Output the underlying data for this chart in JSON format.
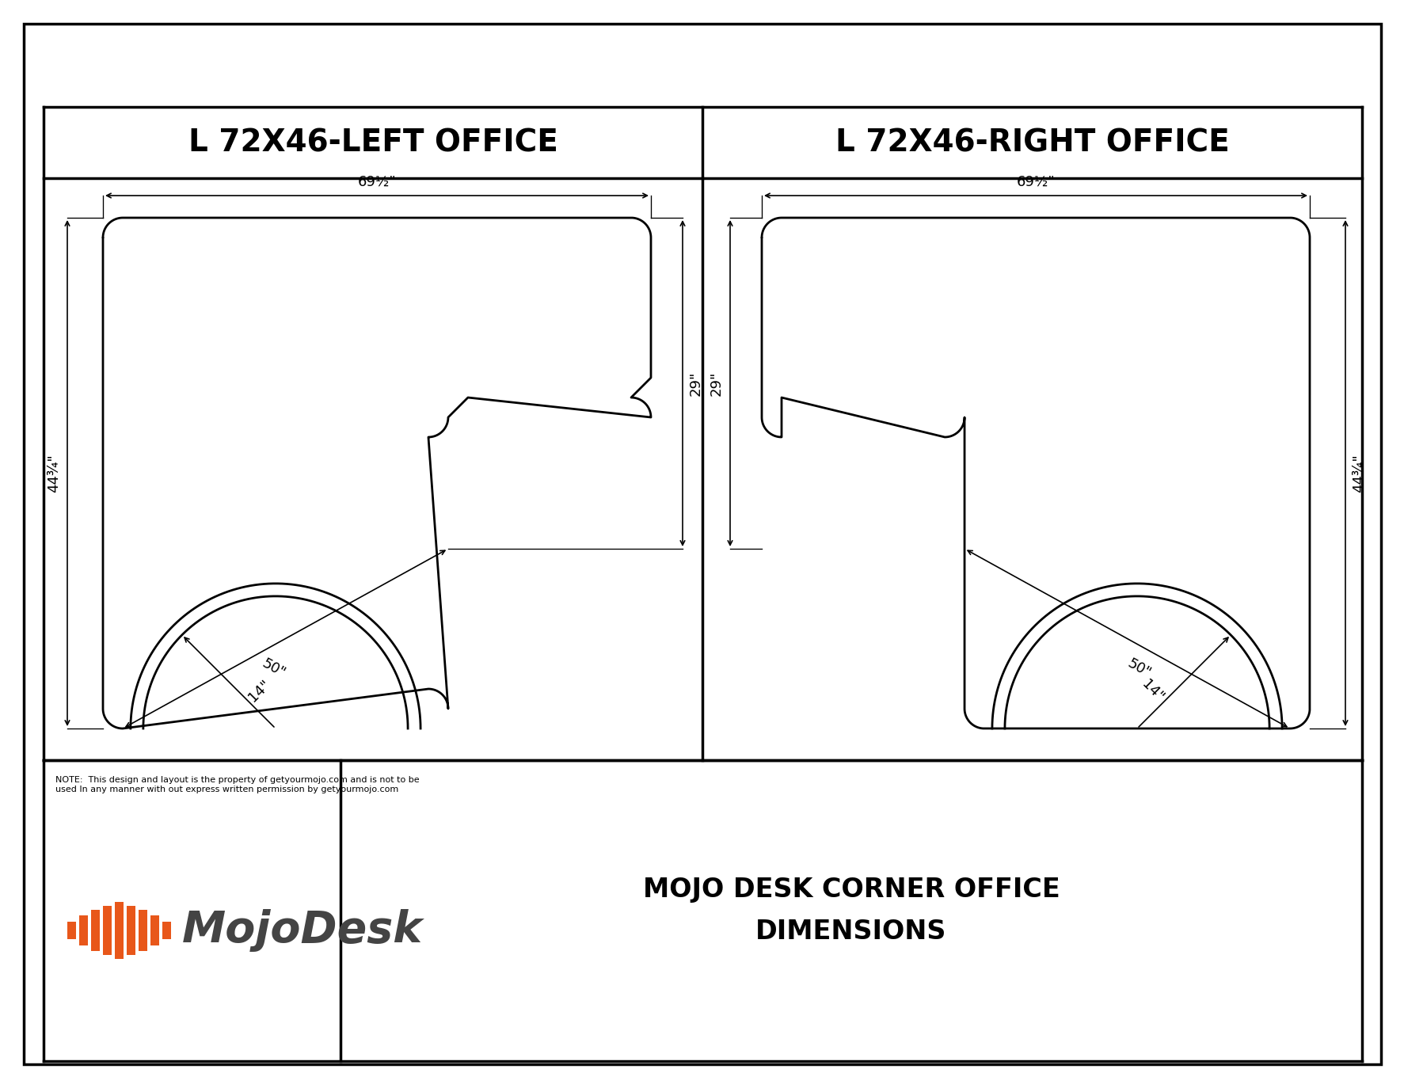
{
  "bg_color": "#ffffff",
  "line_color": "#000000",
  "title_left": "L 72X46-LEFT OFFICE",
  "title_right": "L 72X46-RIGHT OFFICE",
  "dim_width": "69½\"",
  "dim_height_short": "29\"",
  "dim_height_tall": "44¾\"",
  "dim_radius": "14\"",
  "dim_depth": "50\"",
  "note_text": "NOTE:  This design and layout is the property of getyourmojo.com and is not to be\nused In any manner with out express written permission by getyourmojo.com",
  "footer_title": "MOJO DESK CORNER OFFICE\nDIMENSIONS",
  "mojo_text": "MojoDesk",
  "outer_border_lw": 2.5,
  "desk_lw": 2.0,
  "dim_lw": 1.2,
  "title_fontsize": 28,
  "dim_fontsize": 13,
  "footer_fontsize": 24,
  "note_fontsize": 8,
  "logo_fontsize": 40,
  "bar_color": "#E8571A",
  "logo_color": "#444444"
}
